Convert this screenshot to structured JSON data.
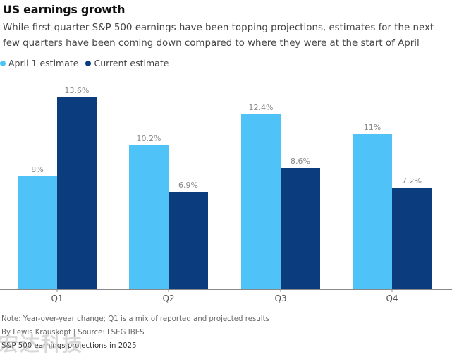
{
  "header": {
    "title": "US earnings growth",
    "subtitle": "While first-quarter S&P 500 earnings have been topping projections, estimates for the next few quarters have been coming down compared to where they were at the start of April"
  },
  "legend": [
    {
      "label": "April 1 estimate",
      "color": "#4fc3f7"
    },
    {
      "label": "Current estimate",
      "color": "#0b3d7e"
    }
  ],
  "footer": {
    "note": "Note: Year-over-year change; Q1 is a mix of reported and projected results",
    "credit": "By Lewis Krauskopf | Source: LSEG IBES",
    "caption": "S&P 500 earnings projections in 2025",
    "watermark": "宏达科技"
  },
  "chart_data": {
    "type": "bar",
    "categories": [
      "Q1",
      "Q2",
      "Q3",
      "Q4"
    ],
    "series": [
      {
        "name": "April 1 estimate",
        "color": "#4fc3f7",
        "values": [
          8,
          10.2,
          12.4,
          11
        ],
        "labels": [
          "8%",
          "10.2%",
          "12.4%",
          "11%"
        ]
      },
      {
        "name": "Current estimate",
        "color": "#0b3d7e",
        "values": [
          13.6,
          6.9,
          8.6,
          7.2
        ],
        "labels": [
          "13.6%",
          "6.9%",
          "8.6%",
          "7.2%"
        ]
      }
    ],
    "ylim": [
      0,
      13.6
    ],
    "grid": false,
    "legend_position": "top-left"
  }
}
